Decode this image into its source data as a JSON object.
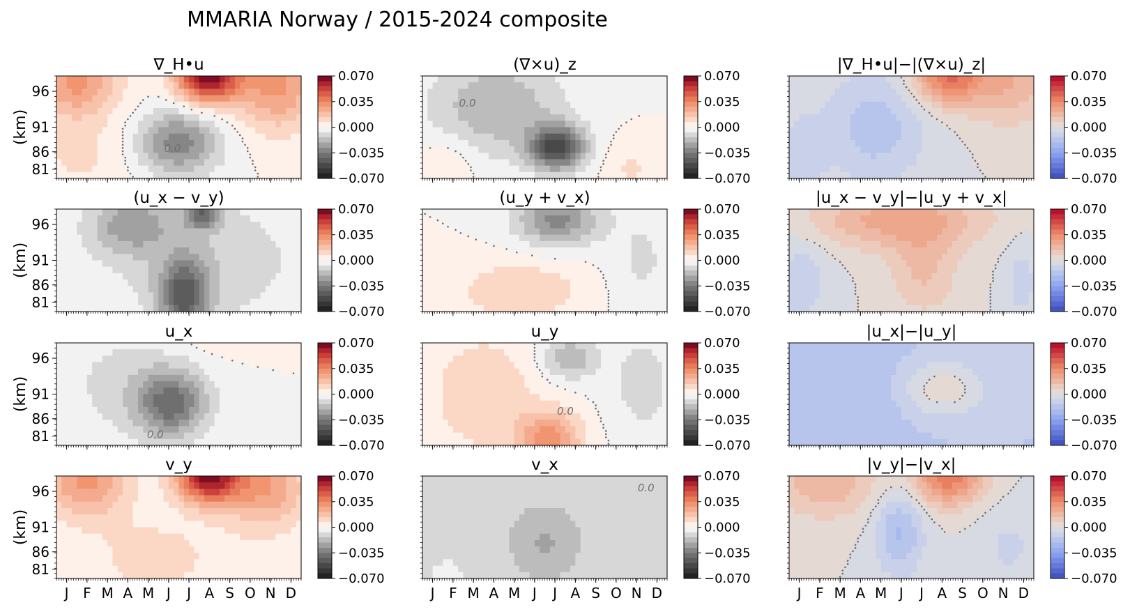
{
  "figure": {
    "title": "MMARIA Norway / 2015-2024 composite"
  },
  "chart_data": {
    "type": "heatmap",
    "title": "MMARIA Norway / 2015-2024 composite",
    "x_ticks": [
      "J",
      "F",
      "M",
      "A",
      "M",
      "J",
      "J",
      "A",
      "S",
      "O",
      "N",
      "D"
    ],
    "y_ticks": [
      "96",
      "91",
      "86",
      "81"
    ],
    "ylabel": "(km)",
    "colorbar_ticks": [
      "0.070",
      "0.035",
      "0.000",
      "−0.035",
      "−0.070"
    ],
    "vmin": -0.07,
    "vmax": 0.07,
    "contour_label": "0.0",
    "colors": {
      "diverging_gray_red": [
        "#252525",
        "#f7f7f7",
        "#ffffff",
        "#fddbc7",
        "#67001f"
      ],
      "diverging_blue_red": [
        "#3b4cc0",
        "#dddddd",
        "#b40426"
      ]
    },
    "panels": [
      {
        "title": "∇_H•u",
        "cmap": "gray-red",
        "row": 0,
        "col": 0,
        "description_values": "divergence, positive near 96 km in Jul-Aug (~0.07), negative core ~-0.03 at 86 km in Jun"
      },
      {
        "title": "(∇×u)_z",
        "cmap": "gray-red",
        "row": 0,
        "col": 1,
        "description_values": "vorticity, negative core ~-0.05 at 86 km in Jul"
      },
      {
        "title": "|∇_H•u|−|(∇×u)_z|",
        "cmap": "blue-red",
        "row": 0,
        "col": 2,
        "description_values": "positive near 96 km Aug (~0.04), negative spring"
      },
      {
        "title": "(u_x − v_y)",
        "cmap": "gray-red",
        "row": 1,
        "col": 0,
        "description_values": "mostly negative, ~-0.04 at 82 km Jul"
      },
      {
        "title": "(u_y + v_x)",
        "cmap": "gray-red",
        "row": 1,
        "col": 1,
        "description_values": "weak positive band at 84 km Jun-Aug, negative at 96 km"
      },
      {
        "title": "|u_x − v_y|−|u_y + v_x|",
        "cmap": "blue-red",
        "row": 1,
        "col": 2,
        "description_values": "positive ~0.02 across upper heights"
      },
      {
        "title": "u_x",
        "cmap": "gray-red",
        "row": 2,
        "col": 0,
        "description_values": "negative core ~-0.03 at 86 km Jun"
      },
      {
        "title": "u_y",
        "cmap": "gray-red",
        "row": 2,
        "col": 1,
        "description_values": "positive ~0.03 at 82 km Jul-Aug, negative at 96 km"
      },
      {
        "title": "|u_x|−|u_y|",
        "cmap": "blue-red",
        "row": 2,
        "col": 2,
        "description_values": "mostly slightly negative"
      },
      {
        "title": "v_y",
        "cmap": "gray-red",
        "row": 3,
        "col": 0,
        "description_values": "positive ~0.06 near 96 km Aug"
      },
      {
        "title": "v_x",
        "cmap": "gray-red",
        "row": 3,
        "col": 1,
        "description_values": "weakly negative ~-0.015"
      },
      {
        "title": "|v_y|−|v_x|",
        "cmap": "blue-red",
        "row": 3,
        "col": 2,
        "description_values": "positive near 96 km Aug, negative Jun"
      }
    ]
  }
}
